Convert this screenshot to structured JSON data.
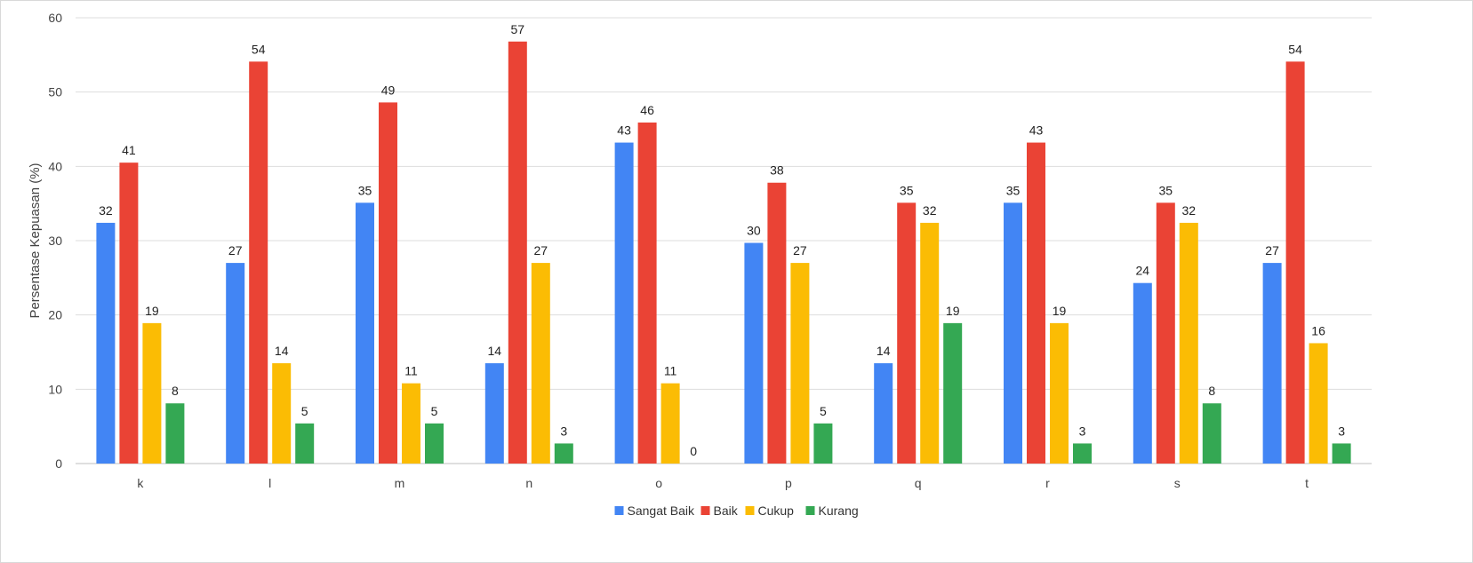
{
  "chart_data": {
    "type": "bar",
    "ylabel": "Persentase Kepuasan (%)",
    "xlabel": "",
    "ylim": [
      0,
      60
    ],
    "yticks": [
      0,
      10,
      20,
      30,
      40,
      50,
      60
    ],
    "grid": true,
    "legend_position": "bottom",
    "categories": [
      "k",
      "l",
      "m",
      "n",
      "o",
      "p",
      "q",
      "r",
      "s",
      "t"
    ],
    "series": [
      {
        "name": "Sangat Baik",
        "color": "#4285F4",
        "values": [
          32.4,
          27.0,
          35.1,
          13.5,
          43.2,
          29.7,
          13.5,
          35.1,
          24.3,
          27.0
        ],
        "labels": [
          "32",
          "27",
          "35",
          "14",
          "43",
          "30",
          "14",
          "35",
          "24",
          "27"
        ]
      },
      {
        "name": "Baik",
        "color": "#EA4335",
        "values": [
          40.5,
          54.1,
          48.6,
          56.8,
          45.9,
          37.8,
          35.1,
          43.2,
          35.1,
          54.1
        ],
        "labels": [
          "41",
          "54",
          "49",
          "57",
          "46",
          "38",
          "35",
          "43",
          "35",
          "54"
        ]
      },
      {
        "name": "Cukup",
        "color": "#FBBC04",
        "values": [
          18.9,
          13.5,
          10.8,
          27.0,
          10.8,
          27.0,
          32.4,
          18.9,
          32.4,
          16.2
        ],
        "labels": [
          "19",
          "14",
          "11",
          "27",
          "11",
          "27",
          "32",
          "19",
          "32",
          "16"
        ]
      },
      {
        "name": "Kurang",
        "color": "#34A853",
        "values": [
          8.1,
          5.4,
          5.4,
          2.7,
          0,
          5.4,
          18.9,
          2.7,
          8.1,
          2.7
        ],
        "labels": [
          "8",
          "5",
          "5",
          "3",
          "0",
          "5",
          "19",
          "3",
          "8",
          "3"
        ]
      }
    ]
  }
}
